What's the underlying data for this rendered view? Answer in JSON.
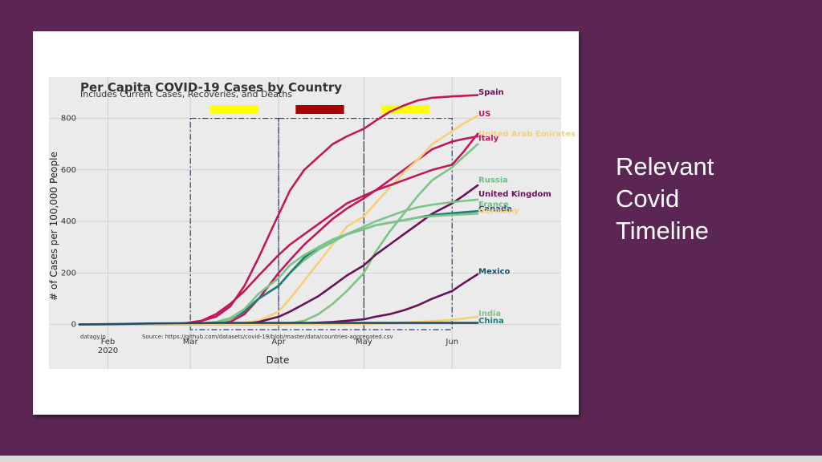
{
  "slide": {
    "side_title_lines": [
      "Relevant",
      "Covid",
      "Timeline"
    ],
    "colors": {
      "background": "#5b2653",
      "card": "#ffffff",
      "plot_bg": "#ebebeb",
      "dash_boxes": "#2b3c7a"
    }
  },
  "chart_data": {
    "type": "line",
    "title": "Per Capita COVID-19 Cases by Country",
    "subtitle": "Includes Current Cases, Recoveries, and Deaths",
    "xlabel": "Date",
    "ylabel": "# of Cases per 100,000 People",
    "source": "Source: https://github.com/datasets/covid-19/blob/master/data/countries-aggregated.csv",
    "credit": "datagy.io",
    "x_range": [
      "2020-01-22",
      "2020-06-30"
    ],
    "ylim": [
      -20,
      920
    ],
    "yticks": [
      0,
      200,
      400,
      600,
      800
    ],
    "xticks": [
      {
        "date": "2020-02-01",
        "label": "Feb",
        "sublabel": "2020"
      },
      {
        "date": "2020-03-01",
        "label": "Mar",
        "sublabel": ""
      },
      {
        "date": "2020-04-01",
        "label": "Apr",
        "sublabel": ""
      },
      {
        "date": "2020-05-01",
        "label": "May",
        "sublabel": ""
      },
      {
        "date": "2020-06-01",
        "label": "Jun",
        "sublabel": ""
      }
    ],
    "grid": true,
    "legend": "labels at line ends",
    "highlight_bars": [
      {
        "start": "2020-03-08",
        "end": "2020-03-25",
        "color": "#ffff00"
      },
      {
        "start": "2020-04-07",
        "end": "2020-04-24",
        "color": "#aa0000"
      },
      {
        "start": "2020-05-07",
        "end": "2020-05-24",
        "color": "#ffff00"
      }
    ],
    "dashed_windows": [
      {
        "start": "2020-03-01",
        "end": "2020-04-01",
        "ymax": 800
      },
      {
        "start": "2020-04-01",
        "end": "2020-05-01",
        "ymax": 800
      },
      {
        "start": "2020-05-01",
        "end": "2020-06-01",
        "ymax": 800
      }
    ],
    "series": [
      {
        "name": "Spain",
        "color": "#c2185b",
        "points": [
          [
            "2020-01-22",
            0
          ],
          [
            "2020-03-01",
            2
          ],
          [
            "2020-03-10",
            30
          ],
          [
            "2020-03-15",
            70
          ],
          [
            "2020-03-20",
            150
          ],
          [
            "2020-03-25",
            260
          ],
          [
            "2020-03-30",
            380
          ],
          [
            "2020-04-05",
            520
          ],
          [
            "2020-04-10",
            600
          ],
          [
            "2020-04-15",
            650
          ],
          [
            "2020-04-20",
            700
          ],
          [
            "2020-04-25",
            730
          ],
          [
            "2020-05-01",
            760
          ],
          [
            "2020-05-05",
            790
          ],
          [
            "2020-05-10",
            825
          ],
          [
            "2020-05-15",
            850
          ],
          [
            "2020-05-20",
            870
          ],
          [
            "2020-05-25",
            880
          ],
          [
            "2020-06-01",
            885
          ],
          [
            "2020-06-10",
            890
          ]
        ],
        "label_y": 902,
        "text_color": "#6a1258"
      },
      {
        "name": "US",
        "color": "#c2185b",
        "points": [
          [
            "2020-01-22",
            0
          ],
          [
            "2020-03-05",
            0
          ],
          [
            "2020-03-15",
            10
          ],
          [
            "2020-03-20",
            40
          ],
          [
            "2020-03-25",
            100
          ],
          [
            "2020-04-01",
            200
          ],
          [
            "2020-04-05",
            250
          ],
          [
            "2020-04-10",
            310
          ],
          [
            "2020-04-15",
            360
          ],
          [
            "2020-04-20",
            410
          ],
          [
            "2020-04-25",
            450
          ],
          [
            "2020-05-01",
            490
          ],
          [
            "2020-05-05",
            520
          ],
          [
            "2020-05-10",
            560
          ],
          [
            "2020-05-15",
            600
          ],
          [
            "2020-05-20",
            640
          ],
          [
            "2020-05-25",
            680
          ],
          [
            "2020-06-01",
            710
          ],
          [
            "2020-06-05",
            720
          ],
          [
            "2020-06-10",
            730
          ]
        ],
        "label_y": 818,
        "text_color": "#c2185b"
      },
      {
        "name": "United Arab Emirates",
        "color": "#f7cf74",
        "points": [
          [
            "2020-01-22",
            0
          ],
          [
            "2020-03-15",
            0
          ],
          [
            "2020-03-25",
            15
          ],
          [
            "2020-04-01",
            50
          ],
          [
            "2020-04-05",
            100
          ],
          [
            "2020-04-10",
            170
          ],
          [
            "2020-04-15",
            240
          ],
          [
            "2020-04-20",
            310
          ],
          [
            "2020-04-25",
            380
          ],
          [
            "2020-05-01",
            420
          ],
          [
            "2020-05-05",
            470
          ],
          [
            "2020-05-10",
            530
          ],
          [
            "2020-05-15",
            590
          ],
          [
            "2020-05-20",
            640
          ],
          [
            "2020-05-25",
            700
          ],
          [
            "2020-06-01",
            750
          ],
          [
            "2020-06-05",
            780
          ],
          [
            "2020-06-10",
            810
          ]
        ],
        "label_y": 740,
        "text_color": "#f7cf74"
      },
      {
        "name": "Italy",
        "color": "#c2185b",
        "points": [
          [
            "2020-01-22",
            0
          ],
          [
            "2020-02-20",
            0
          ],
          [
            "2020-02-28",
            5
          ],
          [
            "2020-03-05",
            15
          ],
          [
            "2020-03-10",
            40
          ],
          [
            "2020-03-15",
            80
          ],
          [
            "2020-03-20",
            130
          ],
          [
            "2020-03-25",
            190
          ],
          [
            "2020-04-01",
            270
          ],
          [
            "2020-04-05",
            310
          ],
          [
            "2020-04-10",
            350
          ],
          [
            "2020-04-15",
            390
          ],
          [
            "2020-04-20",
            430
          ],
          [
            "2020-04-25",
            470
          ],
          [
            "2020-05-01",
            500
          ],
          [
            "2020-05-05",
            520
          ],
          [
            "2020-05-10",
            540
          ],
          [
            "2020-05-15",
            560
          ],
          [
            "2020-05-20",
            580
          ],
          [
            "2020-05-25",
            600
          ],
          [
            "2020-06-01",
            620
          ],
          [
            "2020-06-05",
            670
          ],
          [
            "2020-06-10",
            740
          ]
        ],
        "label_y": 722,
        "text_color": "#c2185b"
      },
      {
        "name": "Russia",
        "color": "#7cc48a",
        "points": [
          [
            "2020-01-22",
            0
          ],
          [
            "2020-04-01",
            0
          ],
          [
            "2020-04-05",
            5
          ],
          [
            "2020-04-10",
            15
          ],
          [
            "2020-04-15",
            40
          ],
          [
            "2020-04-20",
            80
          ],
          [
            "2020-04-25",
            130
          ],
          [
            "2020-05-01",
            200
          ],
          [
            "2020-05-05",
            280
          ],
          [
            "2020-05-10",
            360
          ],
          [
            "2020-05-15",
            430
          ],
          [
            "2020-05-20",
            500
          ],
          [
            "2020-05-25",
            560
          ],
          [
            "2020-06-01",
            610
          ],
          [
            "2020-06-05",
            650
          ],
          [
            "2020-06-10",
            700
          ]
        ],
        "label_y": 560,
        "text_color": "#6fbe86"
      },
      {
        "name": "United Kingdom",
        "color": "#6a1258",
        "points": [
          [
            "2020-01-22",
            0
          ],
          [
            "2020-03-10",
            0
          ],
          [
            "2020-03-20",
            3
          ],
          [
            "2020-03-25",
            10
          ],
          [
            "2020-04-01",
            30
          ],
          [
            "2020-04-05",
            50
          ],
          [
            "2020-04-10",
            80
          ],
          [
            "2020-04-15",
            110
          ],
          [
            "2020-04-20",
            150
          ],
          [
            "2020-04-25",
            190
          ],
          [
            "2020-05-01",
            230
          ],
          [
            "2020-05-05",
            270
          ],
          [
            "2020-05-10",
            310
          ],
          [
            "2020-05-15",
            350
          ],
          [
            "2020-05-20",
            390
          ],
          [
            "2020-05-25",
            430
          ],
          [
            "2020-06-01",
            470
          ],
          [
            "2020-06-05",
            500
          ],
          [
            "2020-06-10",
            540
          ]
        ],
        "label_y": 506,
        "text_color": "#6a1258"
      },
      {
        "name": "France",
        "color": "#7cc48a",
        "points": [
          [
            "2020-01-22",
            0
          ],
          [
            "2020-03-01",
            0
          ],
          [
            "2020-03-10",
            10
          ],
          [
            "2020-03-15",
            25
          ],
          [
            "2020-03-20",
            60
          ],
          [
            "2020-03-25",
            100
          ],
          [
            "2020-04-01",
            150
          ],
          [
            "2020-04-05",
            200
          ],
          [
            "2020-04-10",
            250
          ],
          [
            "2020-04-15",
            290
          ],
          [
            "2020-04-20",
            320
          ],
          [
            "2020-04-25",
            350
          ],
          [
            "2020-05-01",
            380
          ],
          [
            "2020-05-05",
            400
          ],
          [
            "2020-05-10",
            420
          ],
          [
            "2020-05-15",
            440
          ],
          [
            "2020-05-20",
            455
          ],
          [
            "2020-05-25",
            465
          ],
          [
            "2020-06-01",
            475
          ],
          [
            "2020-06-10",
            485
          ]
        ],
        "label_y": 465,
        "text_color": "#6fbe86"
      },
      {
        "name": "Canada",
        "color": "#1f7a78",
        "points": [
          [
            "2020-01-22",
            0
          ],
          [
            "2020-03-10",
            0
          ],
          [
            "2020-03-15",
            20
          ],
          [
            "2020-03-20",
            50
          ],
          [
            "2020-03-25",
            100
          ],
          [
            "2020-04-01",
            150
          ],
          [
            "2020-04-05",
            200
          ],
          [
            "2020-04-10",
            260
          ],
          [
            "2020-04-15",
            300
          ],
          [
            "2020-04-20",
            330
          ],
          [
            "2020-04-25",
            350
          ],
          [
            "2020-05-01",
            370
          ],
          [
            "2020-05-05",
            385
          ],
          [
            "2020-05-10",
            395
          ],
          [
            "2020-05-15",
            405
          ],
          [
            "2020-05-20",
            415
          ],
          [
            "2020-05-25",
            425
          ],
          [
            "2020-06-01",
            432
          ],
          [
            "2020-06-10",
            440
          ]
        ],
        "label_y": 448,
        "text_color": "#1f4e6b"
      },
      {
        "name": "Germany",
        "color": "#7cc48a",
        "points": [
          [
            "2020-01-22",
            0
          ],
          [
            "2020-03-01",
            0
          ],
          [
            "2020-03-10",
            5
          ],
          [
            "2020-03-15",
            20
          ],
          [
            "2020-03-20",
            60
          ],
          [
            "2020-03-25",
            120
          ],
          [
            "2020-04-01",
            180
          ],
          [
            "2020-04-05",
            230
          ],
          [
            "2020-04-10",
            270
          ],
          [
            "2020-04-15",
            300
          ],
          [
            "2020-04-20",
            330
          ],
          [
            "2020-04-25",
            350
          ],
          [
            "2020-05-01",
            370
          ],
          [
            "2020-05-05",
            385
          ],
          [
            "2020-05-10",
            395
          ],
          [
            "2020-05-15",
            405
          ],
          [
            "2020-05-20",
            415
          ],
          [
            "2020-05-25",
            420
          ],
          [
            "2020-06-01",
            425
          ],
          [
            "2020-06-10",
            430
          ]
        ],
        "label_y": 440,
        "text_color": "#f7cf74"
      },
      {
        "name": "Mexico",
        "color": "#6a1258",
        "points": [
          [
            "2020-01-22",
            0
          ],
          [
            "2020-04-01",
            0
          ],
          [
            "2020-04-10",
            5
          ],
          [
            "2020-04-20",
            10
          ],
          [
            "2020-05-01",
            20
          ],
          [
            "2020-05-05",
            30
          ],
          [
            "2020-05-10",
            40
          ],
          [
            "2020-05-15",
            55
          ],
          [
            "2020-05-20",
            75
          ],
          [
            "2020-05-25",
            100
          ],
          [
            "2020-06-01",
            130
          ],
          [
            "2020-06-05",
            160
          ],
          [
            "2020-06-10",
            195
          ]
        ],
        "label_y": 205,
        "text_color": "#1f4e6b"
      },
      {
        "name": "India",
        "color": "#f7cf74",
        "points": [
          [
            "2020-01-22",
            0
          ],
          [
            "2020-04-15",
            0
          ],
          [
            "2020-05-01",
            2
          ],
          [
            "2020-05-10",
            5
          ],
          [
            "2020-05-20",
            10
          ],
          [
            "2020-06-01",
            18
          ],
          [
            "2020-06-10",
            30
          ]
        ],
        "label_y": 42,
        "text_color": "#7cc48a"
      },
      {
        "name": "China",
        "color": "#1f4e6b",
        "points": [
          [
            "2020-01-22",
            0
          ],
          [
            "2020-02-05",
            2
          ],
          [
            "2020-02-15",
            4
          ],
          [
            "2020-02-25",
            5
          ],
          [
            "2020-03-10",
            6
          ],
          [
            "2020-06-10",
            6
          ]
        ],
        "label_y": 15,
        "text_color": "#1f7a78"
      }
    ]
  }
}
